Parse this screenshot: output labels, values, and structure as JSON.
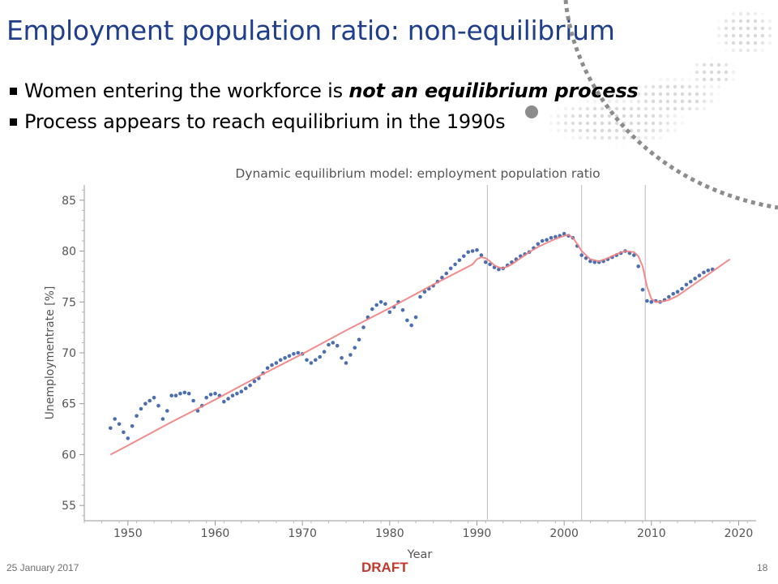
{
  "slide": {
    "title": "Employment population ratio: non-equilibrium",
    "bullets": [
      {
        "text": "Women entering the workforce is ",
        "emphasis": "not an equilibrium process"
      },
      {
        "text": "Process appears to reach equilibrium in the 1990s",
        "emphasis": ""
      }
    ]
  },
  "footer": {
    "date": "25 January 2017",
    "draft": "DRAFT",
    "page": "18"
  },
  "colors": {
    "title": "#1f3e8c",
    "data_points": "#4a6eb0",
    "model_line": "#f08080",
    "recession_lines": "#c8c8c8",
    "draft": "#c0392b"
  },
  "chart_data": {
    "type": "scatter",
    "title": "Dynamic equilibrium model: employment population ratio",
    "xlabel": "Year",
    "ylabel": "Unemploymentrate [%]",
    "xlim": [
      1945,
      2022
    ],
    "ylim": [
      53.5,
      86.5
    ],
    "xticks": [
      1950,
      1960,
      1970,
      1980,
      1990,
      2000,
      2010,
      2020
    ],
    "yticks": [
      55,
      60,
      65,
      70,
      75,
      80,
      85
    ],
    "grid": false,
    "vertical_lines": [
      1991.2,
      2002.0,
      2009.3
    ],
    "series": [
      {
        "kind": "points",
        "x": [
          1948.0,
          1948.5,
          1949.0,
          1949.5,
          1950.0,
          1950.5,
          1951.0,
          1951.5,
          1952.0,
          1952.5,
          1953.0,
          1953.5,
          1954.0,
          1954.5,
          1955.0,
          1955.5,
          1956.0,
          1956.5,
          1957.0,
          1957.5,
          1958.0,
          1958.5,
          1959.0,
          1959.5,
          1960.0,
          1960.5,
          1961.0,
          1961.5,
          1962.0,
          1962.5,
          1963.0,
          1963.5,
          1964.0,
          1964.5,
          1965.0,
          1965.5,
          1966.0,
          1966.5,
          1967.0,
          1967.5,
          1968.0,
          1968.5,
          1969.0,
          1969.5,
          1970.0,
          1970.5,
          1971.0,
          1971.5,
          1972.0,
          1972.5,
          1973.0,
          1973.5,
          1974.0,
          1974.5,
          1975.0,
          1975.5,
          1976.0,
          1976.5,
          1977.0,
          1977.5,
          1978.0,
          1978.5,
          1979.0,
          1979.5,
          1980.0,
          1980.5,
          1981.0,
          1981.5,
          1982.0,
          1982.5,
          1983.0,
          1983.5,
          1984.0,
          1984.5,
          1985.0,
          1985.5,
          1986.0,
          1986.5,
          1987.0,
          1987.5,
          1988.0,
          1988.5,
          1989.0,
          1989.5,
          1990.0,
          1990.5,
          1991.0,
          1991.5,
          1992.0,
          1992.5,
          1993.0,
          1993.5,
          1994.0,
          1994.5,
          1995.0,
          1995.5,
          1996.0,
          1996.5,
          1997.0,
          1997.5,
          1998.0,
          1998.5,
          1999.0,
          1999.5,
          2000.0,
          2000.5,
          2001.0,
          2001.5,
          2002.0,
          2002.5,
          2003.0,
          2003.5,
          2004.0,
          2004.5,
          2005.0,
          2005.5,
          2006.0,
          2006.5,
          2007.0,
          2007.5,
          2008.0,
          2008.5,
          2009.0,
          2009.5,
          2010.0,
          2010.5,
          2011.0,
          2011.5,
          2012.0,
          2012.5,
          2013.0,
          2013.5,
          2014.0,
          2014.5,
          2015.0,
          2015.5,
          2016.0,
          2016.5,
          2017.0
        ],
        "y": [
          62.6,
          63.5,
          63.0,
          62.2,
          61.6,
          62.8,
          63.8,
          64.5,
          65.0,
          65.3,
          65.6,
          64.8,
          63.5,
          64.3,
          65.8,
          65.8,
          66.0,
          66.1,
          66.0,
          65.3,
          64.3,
          64.8,
          65.6,
          65.9,
          66.0,
          65.8,
          65.2,
          65.5,
          65.8,
          66.0,
          66.2,
          66.5,
          66.8,
          67.2,
          67.5,
          68.0,
          68.5,
          68.8,
          69.0,
          69.3,
          69.5,
          69.7,
          69.9,
          70.0,
          69.9,
          69.3,
          69.0,
          69.3,
          69.6,
          70.1,
          70.8,
          71.0,
          70.7,
          69.5,
          69.0,
          69.8,
          70.5,
          71.3,
          72.5,
          73.5,
          74.3,
          74.7,
          75.0,
          74.8,
          74.0,
          74.5,
          75.0,
          74.2,
          73.2,
          72.7,
          73.5,
          75.5,
          76.0,
          76.3,
          76.6,
          77.0,
          77.4,
          77.8,
          78.3,
          78.7,
          79.1,
          79.5,
          79.9,
          80.0,
          80.1,
          79.6,
          78.9,
          78.7,
          78.4,
          78.2,
          78.3,
          78.6,
          78.9,
          79.2,
          79.5,
          79.7,
          79.9,
          80.3,
          80.7,
          81.0,
          81.1,
          81.3,
          81.4,
          81.5,
          81.7,
          81.5,
          81.3,
          80.5,
          79.6,
          79.3,
          79.0,
          78.9,
          78.9,
          79.0,
          79.2,
          79.4,
          79.6,
          79.8,
          80.0,
          79.8,
          79.6,
          78.5,
          76.2,
          75.1,
          75.0,
          75.1,
          75.0,
          75.2,
          75.5,
          75.8,
          76.0,
          76.3,
          76.7,
          77.0,
          77.3,
          77.6,
          77.9,
          78.1,
          78.2
        ]
      },
      {
        "kind": "model",
        "x": [
          1948.0,
          1950,
          1955,
          1960,
          1965,
          1970,
          1975,
          1980,
          1985,
          1989.5,
          1990,
          1990.5,
          1991,
          1991.5,
          1992,
          1992.5,
          1993,
          1994,
          1995,
          1996,
          1997,
          1998,
          1999,
          2000,
          2000.5,
          2001,
          2001.5,
          2002,
          2003,
          2004,
          2005,
          2006,
          2007,
          2008,
          2008.5,
          2009,
          2009.5,
          2010,
          2010.5,
          2011,
          2012,
          2013,
          2014,
          2015,
          2016,
          2017,
          2018,
          2019
        ],
        "y": [
          60.0,
          60.9,
          63.2,
          65.4,
          67.7,
          69.9,
          72.2,
          74.4,
          76.7,
          78.7,
          79.2,
          79.4,
          79.3,
          79.0,
          78.6,
          78.4,
          78.3,
          78.7,
          79.3,
          79.9,
          80.4,
          80.8,
          81.2,
          81.5,
          81.6,
          81.3,
          80.7,
          80.0,
          79.2,
          79.0,
          79.3,
          79.7,
          80.0,
          79.9,
          79.5,
          78.5,
          76.5,
          75.3,
          75.0,
          75.0,
          75.2,
          75.6,
          76.2,
          76.8,
          77.4,
          78.0,
          78.6,
          79.2
        ]
      }
    ]
  }
}
